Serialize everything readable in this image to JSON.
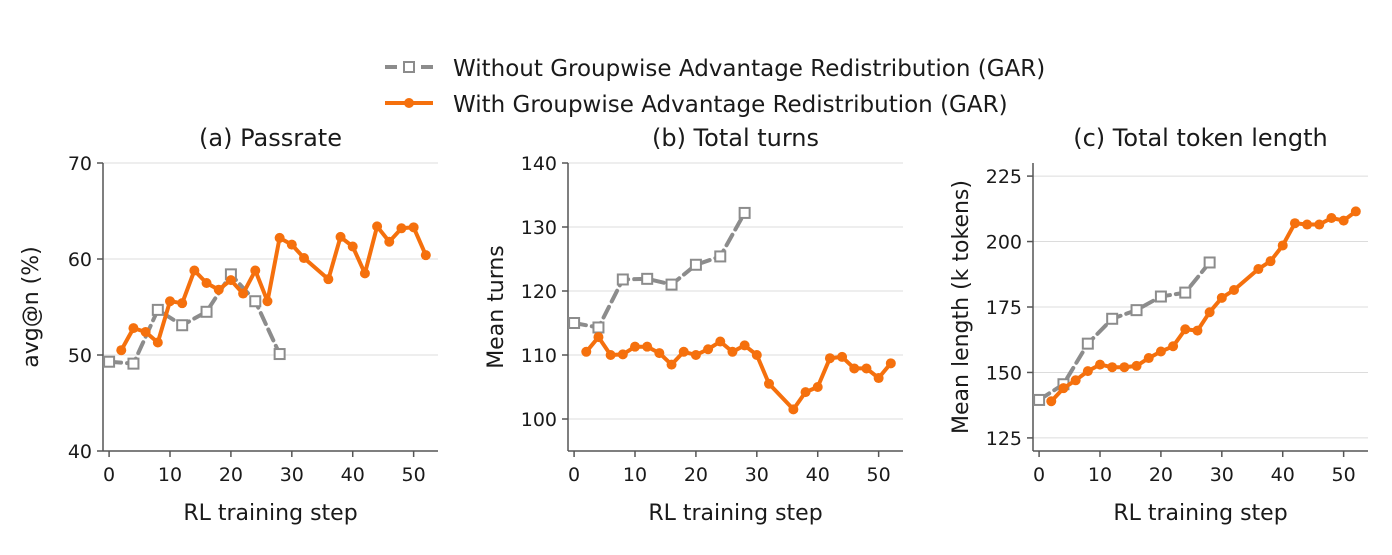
{
  "legend": {
    "without_label": "Without Groupwise Advantage Redistribution (GAR)",
    "with_label": "With Groupwise Advantage Redistribution (GAR)"
  },
  "colors": {
    "without": "#8c8c8c",
    "with": "#f5700d",
    "grid": "#dcdcdc",
    "axis": "#555555"
  },
  "chart_data": [
    {
      "type": "line",
      "title": "(a) Passrate",
      "xlabel": "RL training step",
      "ylabel": "avg@n (%)",
      "xlim": [
        -1,
        54
      ],
      "ylim": [
        40,
        70
      ],
      "xticks": [
        0,
        10,
        20,
        30,
        40,
        50
      ],
      "yticks": [
        40,
        50,
        60,
        70
      ],
      "grid": "y",
      "series": [
        {
          "name": "Without Groupwise Advantage Redistribution (GAR)",
          "x": [
            0,
            4,
            8,
            12,
            16,
            20,
            24,
            28
          ],
          "y": [
            49.3,
            49.1,
            54.7,
            53.1,
            54.5,
            58.4,
            55.6,
            50.1
          ]
        },
        {
          "name": "With Groupwise Advantage Redistribution (GAR)",
          "x": [
            2,
            4,
            6,
            8,
            10,
            12,
            14,
            16,
            18,
            20,
            22,
            24,
            26,
            28,
            30,
            32,
            36,
            38,
            40,
            42,
            44,
            46,
            48,
            50,
            52
          ],
          "y": [
            50.5,
            52.8,
            52.4,
            51.3,
            55.6,
            55.4,
            58.8,
            57.5,
            56.8,
            57.8,
            56.4,
            58.8,
            55.6,
            62.2,
            61.5,
            60.1,
            57.9,
            62.3,
            61.3,
            58.5,
            63.4,
            61.8,
            63.2,
            63.3,
            60.4
          ]
        }
      ]
    },
    {
      "type": "line",
      "title": "(b) Total turns",
      "xlabel": "RL training step",
      "ylabel": "Mean turns",
      "xlim": [
        -1,
        54
      ],
      "ylim": [
        95,
        140
      ],
      "xticks": [
        0,
        10,
        20,
        30,
        40,
        50
      ],
      "yticks": [
        100,
        110,
        120,
        130,
        140
      ],
      "grid": "y",
      "series": [
        {
          "name": "Without Groupwise Advantage Redistribution (GAR)",
          "x": [
            0,
            4,
            8,
            12,
            16,
            20,
            24,
            28
          ],
          "y": [
            115.0,
            114.3,
            121.8,
            121.9,
            121.0,
            124.1,
            125.4,
            132.2
          ]
        },
        {
          "name": "With Groupwise Advantage Redistribution (GAR)",
          "x": [
            2,
            4,
            6,
            8,
            10,
            12,
            14,
            16,
            18,
            20,
            22,
            24,
            26,
            28,
            30,
            32,
            36,
            38,
            40,
            42,
            44,
            46,
            48,
            50,
            52
          ],
          "y": [
            110.5,
            112.8,
            110.0,
            110.1,
            111.3,
            111.3,
            110.3,
            108.5,
            110.5,
            110.0,
            110.9,
            112.1,
            110.5,
            111.5,
            110.0,
            105.5,
            101.5,
            104.2,
            105.0,
            109.5,
            109.7,
            107.9,
            107.9,
            106.4,
            108.7
          ]
        }
      ]
    },
    {
      "type": "line",
      "title": "(c) Total token length",
      "xlabel": "RL training step",
      "ylabel": "Mean length (k tokens)",
      "xlim": [
        -1,
        54
      ],
      "ylim": [
        120,
        230
      ],
      "xticks": [
        0,
        10,
        20,
        30,
        40,
        50
      ],
      "yticks": [
        125,
        150,
        175,
        200,
        225
      ],
      "grid": "y",
      "series": [
        {
          "name": "Without Groupwise Advantage Redistribution (GAR)",
          "x": [
            0,
            4,
            8,
            12,
            16,
            20,
            24,
            28
          ],
          "y": [
            139.5,
            145.5,
            161.0,
            170.5,
            173.8,
            179.0,
            180.5,
            192.0
          ]
        },
        {
          "name": "With Groupwise Advantage Redistribution (GAR)",
          "x": [
            2,
            4,
            6,
            8,
            10,
            12,
            14,
            16,
            18,
            20,
            22,
            24,
            26,
            28,
            30,
            32,
            36,
            38,
            40,
            42,
            44,
            46,
            48,
            50,
            52
          ],
          "y": [
            139.0,
            144.0,
            147.0,
            150.5,
            153.0,
            152.0,
            152.0,
            152.5,
            155.5,
            158.0,
            160.0,
            166.5,
            166.0,
            173.0,
            178.5,
            181.5,
            189.5,
            192.5,
            198.5,
            207.0,
            206.5,
            206.5,
            209.0,
            208.0,
            211.5
          ]
        }
      ]
    }
  ]
}
